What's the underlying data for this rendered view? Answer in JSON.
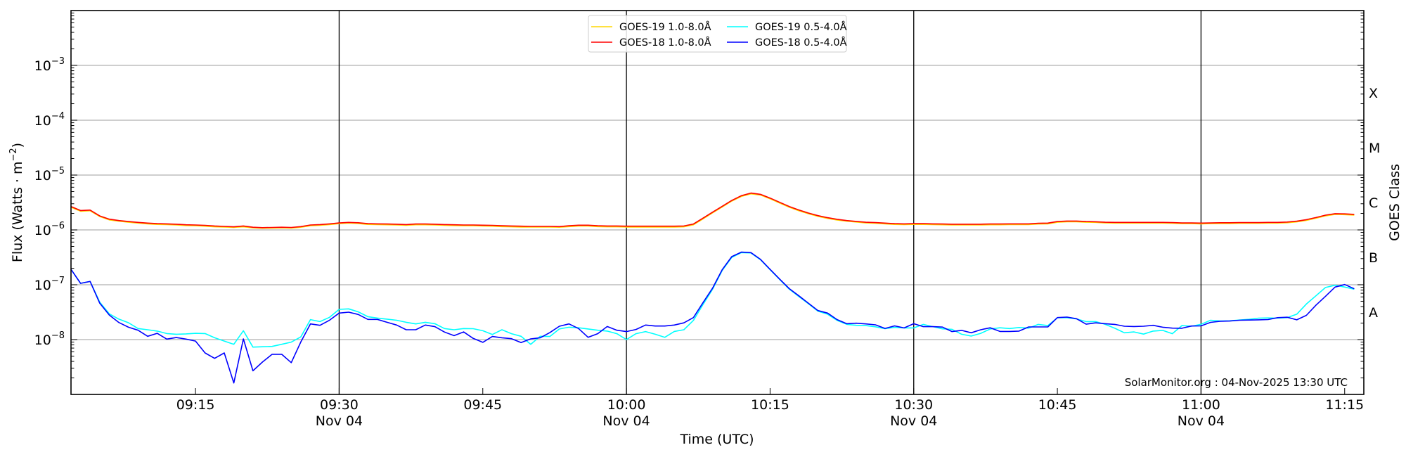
{
  "chart_data": {
    "type": "line",
    "y_scale": "log",
    "ylim": [
      1e-09,
      0.01
    ],
    "xlim": [
      "09:02",
      "11:17"
    ],
    "grid": "horizontal at each decade",
    "legend_placement": "top-center",
    "xlabel": "Time (UTC)",
    "ylabel": {
      "text": "Flux (Watts · m",
      "sup": "−2",
      "suffix": ")"
    },
    "right_ylabel": "GOES Class",
    "right_class_labels": [
      {
        "label": "X",
        "value": 0.000316
      },
      {
        "label": "M",
        "value": 3.16e-05
      },
      {
        "label": "C",
        "value": 3.16e-06
      },
      {
        "label": "B",
        "value": 3.16e-07
      },
      {
        "label": "A",
        "value": 3.16e-08
      }
    ],
    "y_tick_labels": [
      {
        "value": 0.001,
        "base": "10",
        "exp": "−3"
      },
      {
        "value": 0.0001,
        "base": "10",
        "exp": "−4"
      },
      {
        "value": 1e-05,
        "base": "10",
        "exp": "−5"
      },
      {
        "value": 1e-06,
        "base": "10",
        "exp": "−6"
      },
      {
        "value": 1e-07,
        "base": "10",
        "exp": "−7"
      },
      {
        "value": 1e-08,
        "base": "10",
        "exp": "−8"
      }
    ],
    "x_tick_labels": [
      {
        "time": "09:15",
        "label": "09:15",
        "date": ""
      },
      {
        "time": "09:30",
        "label": "09:30",
        "date": "Nov 04"
      },
      {
        "time": "09:45",
        "label": "09:45",
        "date": ""
      },
      {
        "time": "10:00",
        "label": "10:00",
        "date": "Nov 04"
      },
      {
        "time": "10:15",
        "label": "10:15",
        "date": ""
      },
      {
        "time": "10:30",
        "label": "10:30",
        "date": "Nov 04"
      },
      {
        "time": "10:45",
        "label": "10:45",
        "date": ""
      },
      {
        "time": "11:00",
        "label": "11:00",
        "date": "Nov 04"
      },
      {
        "time": "11:15",
        "label": "11:15",
        "date": ""
      }
    ],
    "vertical_lines": [
      "09:30",
      "10:00",
      "10:30",
      "11:00"
    ],
    "annotation": "SolarMonitor.org : 04-Nov-2025 13:30 UTC",
    "x": [
      "09:02",
      "09:03",
      "09:04",
      "09:05",
      "09:06",
      "09:07",
      "09:08",
      "09:09",
      "09:10",
      "09:11",
      "09:12",
      "09:13",
      "09:14",
      "09:15",
      "09:16",
      "09:17",
      "09:18",
      "09:19",
      "09:20",
      "09:21",
      "09:22",
      "09:23",
      "09:24",
      "09:25",
      "09:26",
      "09:27",
      "09:28",
      "09:29",
      "09:30",
      "09:31",
      "09:32",
      "09:33",
      "09:34",
      "09:35",
      "09:36",
      "09:37",
      "09:38",
      "09:39",
      "09:40",
      "09:41",
      "09:42",
      "09:43",
      "09:44",
      "09:45",
      "09:46",
      "09:47",
      "09:48",
      "09:49",
      "09:50",
      "09:51",
      "09:52",
      "09:53",
      "09:54",
      "09:55",
      "09:56",
      "09:57",
      "09:58",
      "09:59",
      "10:00",
      "10:01",
      "10:02",
      "10:03",
      "10:04",
      "10:05",
      "10:06",
      "10:07",
      "10:08",
      "10:09",
      "10:10",
      "10:11",
      "10:12",
      "10:13",
      "10:14",
      "10:15",
      "10:16",
      "10:17",
      "10:18",
      "10:19",
      "10:20",
      "10:21",
      "10:22",
      "10:23",
      "10:24",
      "10:25",
      "10:26",
      "10:27",
      "10:28",
      "10:29",
      "10:30",
      "10:31",
      "10:32",
      "10:33",
      "10:34",
      "10:35",
      "10:36",
      "10:37",
      "10:38",
      "10:39",
      "10:40",
      "10:41",
      "10:42",
      "10:43",
      "10:44",
      "10:45",
      "10:46",
      "10:47",
      "10:48",
      "10:49",
      "10:50",
      "10:51",
      "10:52",
      "10:53",
      "10:54",
      "10:55",
      "10:56",
      "10:57",
      "10:58",
      "10:59",
      "11:00",
      "11:01",
      "11:02",
      "11:03",
      "11:04",
      "11:05",
      "11:06",
      "11:07",
      "11:08",
      "11:09",
      "11:10",
      "11:11",
      "11:12",
      "11:13",
      "11:14",
      "11:15",
      "11:16"
    ],
    "series": [
      {
        "name": "GOES-19 1.0-8.0Å",
        "key": "goes19-long",
        "color": "#ffd700",
        "values": [
          2.59e-06,
          2.19e-06,
          2.23e-06,
          1.75e-06,
          1.52e-06,
          1.44e-06,
          1.38e-06,
          1.33e-06,
          1.29e-06,
          1.26e-06,
          1.25e-06,
          1.23e-06,
          1.2e-06,
          1.19e-06,
          1.17e-06,
          1.14e-06,
          1.13e-06,
          1.11e-06,
          1.14e-06,
          1.09e-06,
          1.07e-06,
          1.08e-06,
          1.09e-06,
          1.08e-06,
          1.12e-06,
          1.19e-06,
          1.21e-06,
          1.25e-06,
          1.3e-06,
          1.33e-06,
          1.31e-06,
          1.26e-06,
          1.25e-06,
          1.24e-06,
          1.23e-06,
          1.21e-06,
          1.24e-06,
          1.24e-06,
          1.23e-06,
          1.21e-06,
          1.2e-06,
          1.19e-06,
          1.19e-06,
          1.18e-06,
          1.17e-06,
          1.15e-06,
          1.14e-06,
          1.13e-06,
          1.13e-06,
          1.13e-06,
          1.13e-06,
          1.12e-06,
          1.15e-06,
          1.18e-06,
          1.18e-06,
          1.15e-06,
          1.14e-06,
          1.14e-06,
          1.13e-06,
          1.13e-06,
          1.13e-06,
          1.13e-06,
          1.13e-06,
          1.13e-06,
          1.14e-06,
          1.24e-06,
          1.59e-06,
          2.05e-06,
          2.62e-06,
          3.35e-06,
          4.08e-06,
          4.55e-06,
          4.33e-06,
          3.7e-06,
          3.09e-06,
          2.59e-06,
          2.24e-06,
          1.97e-06,
          1.77e-06,
          1.62e-06,
          1.51e-06,
          1.44e-06,
          1.39e-06,
          1.34e-06,
          1.32e-06,
          1.29e-06,
          1.26e-06,
          1.25e-06,
          1.26e-06,
          1.26e-06,
          1.25e-06,
          1.24e-06,
          1.23e-06,
          1.23e-06,
          1.23e-06,
          1.23e-06,
          1.24e-06,
          1.24e-06,
          1.25e-06,
          1.25e-06,
          1.25e-06,
          1.28e-06,
          1.29e-06,
          1.38e-06,
          1.41e-06,
          1.41e-06,
          1.38e-06,
          1.37e-06,
          1.34e-06,
          1.33e-06,
          1.33e-06,
          1.33e-06,
          1.33e-06,
          1.33e-06,
          1.33e-06,
          1.32e-06,
          1.3e-06,
          1.3e-06,
          1.29e-06,
          1.3e-06,
          1.31e-06,
          1.31e-06,
          1.32e-06,
          1.32e-06,
          1.32e-06,
          1.33e-06,
          1.33e-06,
          1.35e-06,
          1.4e-06,
          1.49e-06,
          1.63e-06,
          1.8e-06,
          1.92e-06,
          1.9e-06,
          1.86e-06
        ]
      },
      {
        "name": "GOES-19 0.5-4.0Å",
        "key": "goes19-short",
        "color": "#00ffff",
        "values": [
          1.91e-07,
          1.06e-07,
          1.15e-07,
          4.83e-08,
          2.95e-08,
          2.36e-08,
          2.03e-08,
          1.59e-08,
          1.51e-08,
          1.43e-08,
          1.29e-08,
          1.25e-08,
          1.27e-08,
          1.3e-08,
          1.29e-08,
          1.08e-08,
          9.4e-09,
          8.2e-09,
          1.45e-08,
          7.3e-09,
          7.4e-09,
          7.5e-09,
          8.2e-09,
          9e-09,
          1.12e-08,
          2.31e-08,
          2.13e-08,
          2.55e-08,
          3.56e-08,
          3.63e-08,
          3.2e-08,
          2.62e-08,
          2.47e-08,
          2.36e-08,
          2.25e-08,
          2.07e-08,
          1.93e-08,
          2.07e-08,
          1.95e-08,
          1.59e-08,
          1.51e-08,
          1.59e-08,
          1.58e-08,
          1.45e-08,
          1.24e-08,
          1.51e-08,
          1.28e-08,
          1.15e-08,
          8.2e-09,
          1.15e-08,
          1.14e-08,
          1.56e-08,
          1.68e-08,
          1.64e-08,
          1.56e-08,
          1.48e-08,
          1.43e-08,
          1.28e-08,
          1e-08,
          1.28e-08,
          1.4e-08,
          1.25e-08,
          1.1e-08,
          1.41e-08,
          1.51e-08,
          2.24e-08,
          4.37e-08,
          8.3e-08,
          1.82e-07,
          3.15e-07,
          3.85e-07,
          3.8e-07,
          2.85e-07,
          1.88e-07,
          1.25e-07,
          8.3e-08,
          6.1e-08,
          4.5e-08,
          3.3e-08,
          2.9e-08,
          2.24e-08,
          1.9e-08,
          1.82e-08,
          1.8e-08,
          1.71e-08,
          1.58e-08,
          1.67e-08,
          1.63e-08,
          1.63e-08,
          1.89e-08,
          1.72e-08,
          1.57e-08,
          1.54e-08,
          1.25e-08,
          1.16e-08,
          1.3e-08,
          1.56e-08,
          1.64e-08,
          1.59e-08,
          1.66e-08,
          1.62e-08,
          1.89e-08,
          1.8e-08,
          2.5e-08,
          2.5e-08,
          2.38e-08,
          2.13e-08,
          2.13e-08,
          1.89e-08,
          1.61e-08,
          1.33e-08,
          1.38e-08,
          1.26e-08,
          1.43e-08,
          1.47e-08,
          1.28e-08,
          1.8e-08,
          1.75e-08,
          1.9e-08,
          2.25e-08,
          2.18e-08,
          2.2e-08,
          2.27e-08,
          2.34e-08,
          2.46e-08,
          2.48e-08,
          2.46e-08,
          2.51e-08,
          2.9e-08,
          4.45e-08,
          6.3e-08,
          8.9e-08,
          9.8e-08,
          9.06e-08,
          8.3e-08
        ]
      },
      {
        "name": "GOES-18 1.0-8.0Å",
        "key": "goes18-long",
        "color": "#ff0000",
        "values": [
          2.67e-06,
          2.26e-06,
          2.3e-06,
          1.8e-06,
          1.57e-06,
          1.48e-06,
          1.42e-06,
          1.37e-06,
          1.33e-06,
          1.3e-06,
          1.29e-06,
          1.27e-06,
          1.24e-06,
          1.23e-06,
          1.21e-06,
          1.18e-06,
          1.16e-06,
          1.14e-06,
          1.18e-06,
          1.12e-06,
          1.1e-06,
          1.11e-06,
          1.12e-06,
          1.11e-06,
          1.15e-06,
          1.23e-06,
          1.25e-06,
          1.29e-06,
          1.34e-06,
          1.37e-06,
          1.35e-06,
          1.3e-06,
          1.29e-06,
          1.28e-06,
          1.27e-06,
          1.25e-06,
          1.28e-06,
          1.28e-06,
          1.27e-06,
          1.25e-06,
          1.24e-06,
          1.23e-06,
          1.23e-06,
          1.22e-06,
          1.21e-06,
          1.19e-06,
          1.18e-06,
          1.17e-06,
          1.16e-06,
          1.16e-06,
          1.16e-06,
          1.15e-06,
          1.19e-06,
          1.22e-06,
          1.22e-06,
          1.19e-06,
          1.18e-06,
          1.18e-06,
          1.17e-06,
          1.17e-06,
          1.17e-06,
          1.17e-06,
          1.17e-06,
          1.17e-06,
          1.18e-06,
          1.28e-06,
          1.64e-06,
          2.11e-06,
          2.7e-06,
          3.45e-06,
          4.21e-06,
          4.69e-06,
          4.46e-06,
          3.81e-06,
          3.19e-06,
          2.67e-06,
          2.31e-06,
          2.03e-06,
          1.82e-06,
          1.67e-06,
          1.56e-06,
          1.48e-06,
          1.43e-06,
          1.38e-06,
          1.36e-06,
          1.33e-06,
          1.3e-06,
          1.29e-06,
          1.3e-06,
          1.3e-06,
          1.29e-06,
          1.28e-06,
          1.27e-06,
          1.27e-06,
          1.27e-06,
          1.27e-06,
          1.28e-06,
          1.28e-06,
          1.29e-06,
          1.29e-06,
          1.29e-06,
          1.32e-06,
          1.33e-06,
          1.42e-06,
          1.45e-06,
          1.45e-06,
          1.42e-06,
          1.41e-06,
          1.38e-06,
          1.37e-06,
          1.37e-06,
          1.37e-06,
          1.37e-06,
          1.37e-06,
          1.37e-06,
          1.36e-06,
          1.34e-06,
          1.34e-06,
          1.33e-06,
          1.34e-06,
          1.35e-06,
          1.35e-06,
          1.36e-06,
          1.36e-06,
          1.36e-06,
          1.37e-06,
          1.37e-06,
          1.39e-06,
          1.44e-06,
          1.54e-06,
          1.68e-06,
          1.86e-06,
          1.98e-06,
          1.96e-06,
          1.92e-06
        ]
      },
      {
        "name": "GOES-18 0.5-4.0Å",
        "key": "goes18-short",
        "color": "#0000ff",
        "values": [
          1.91e-07,
          1.06e-07,
          1.15e-07,
          4.6e-08,
          2.8e-08,
          2.05e-08,
          1.68e-08,
          1.48e-08,
          1.15e-08,
          1.3e-08,
          1.02e-08,
          1.09e-08,
          1.02e-08,
          9.4e-09,
          5.7e-09,
          4.55e-09,
          5.7e-09,
          1.62e-09,
          1.03e-08,
          2.7e-09,
          3.9e-09,
          5.4e-09,
          5.4e-09,
          3.8e-09,
          9.05e-09,
          1.93e-08,
          1.82e-08,
          2.26e-08,
          3.04e-08,
          3.16e-08,
          2.87e-08,
          2.33e-08,
          2.33e-08,
          2.07e-08,
          1.84e-08,
          1.51e-08,
          1.51e-08,
          1.84e-08,
          1.72e-08,
          1.37e-08,
          1.18e-08,
          1.38e-08,
          1.05e-08,
          8.9e-09,
          1.14e-08,
          1.08e-08,
          1.04e-08,
          8.8e-09,
          1.03e-08,
          1.08e-08,
          1.34e-08,
          1.75e-08,
          1.93e-08,
          1.59e-08,
          1.1e-08,
          1.28e-08,
          1.73e-08,
          1.48e-08,
          1.4e-08,
          1.53e-08,
          1.84e-08,
          1.77e-08,
          1.77e-08,
          1.84e-08,
          2.02e-08,
          2.52e-08,
          4.74e-08,
          8.7e-08,
          1.88e-07,
          3.26e-07,
          3.93e-07,
          3.85e-07,
          2.9e-07,
          1.91e-07,
          1.27e-07,
          8.5e-08,
          6.3e-08,
          4.6e-08,
          3.38e-08,
          3.04e-08,
          2.31e-08,
          1.95e-08,
          1.99e-08,
          1.93e-08,
          1.86e-08,
          1.6e-08,
          1.78e-08,
          1.63e-08,
          1.95e-08,
          1.72e-08,
          1.72e-08,
          1.69e-08,
          1.4e-08,
          1.47e-08,
          1.33e-08,
          1.51e-08,
          1.64e-08,
          1.41e-08,
          1.41e-08,
          1.43e-08,
          1.7e-08,
          1.7e-08,
          1.7e-08,
          2.52e-08,
          2.57e-08,
          2.4e-08,
          1.91e-08,
          2.02e-08,
          1.95e-08,
          1.89e-08,
          1.75e-08,
          1.73e-08,
          1.75e-08,
          1.82e-08,
          1.68e-08,
          1.62e-08,
          1.61e-08,
          1.77e-08,
          1.78e-08,
          2.06e-08,
          2.16e-08,
          2.18e-08,
          2.25e-08,
          2.27e-08,
          2.29e-08,
          2.32e-08,
          2.51e-08,
          2.56e-08,
          2.29e-08,
          2.77e-08,
          4.23e-08,
          6.16e-08,
          9.06e-08,
          1.01e-07,
          8.45e-08
        ]
      }
    ],
    "legend_order": [
      0,
      2,
      1,
      3
    ],
    "colors": {
      "grid": "#b0b0b0",
      "axis": "#000000",
      "legend_border": "#cccccc"
    }
  }
}
